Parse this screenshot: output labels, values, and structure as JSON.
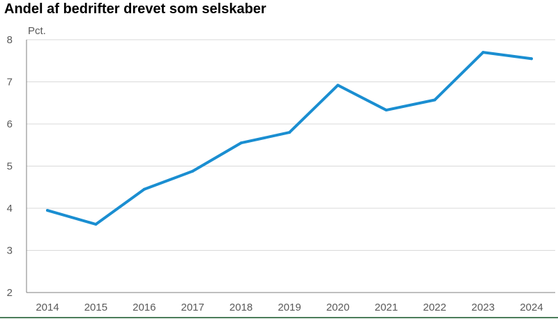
{
  "title": "Andel af bedrifter drevet som selskaber",
  "chart_data": {
    "type": "line",
    "title": "Andel af bedrifter drevet som selskaber",
    "ylabel": "Pct.",
    "xlabel": "",
    "x": [
      "2014",
      "2015",
      "2016",
      "2017",
      "2018",
      "2019",
      "2020",
      "2021",
      "2022",
      "2023",
      "2024"
    ],
    "series": [
      {
        "values": [
          3.95,
          3.62,
          4.45,
          4.88,
          5.55,
          5.8,
          6.92,
          6.33,
          6.57,
          7.7,
          7.55
        ]
      }
    ],
    "ylim": [
      2,
      8
    ],
    "yticks": [
      2,
      3,
      4,
      5,
      6,
      7,
      8
    ],
    "grid": true,
    "colors": {
      "line": "#1a8ed1",
      "grid": "#d9d9d9",
      "axis": "#7f7f7f",
      "bottom_rule": "#4a7c59"
    }
  }
}
